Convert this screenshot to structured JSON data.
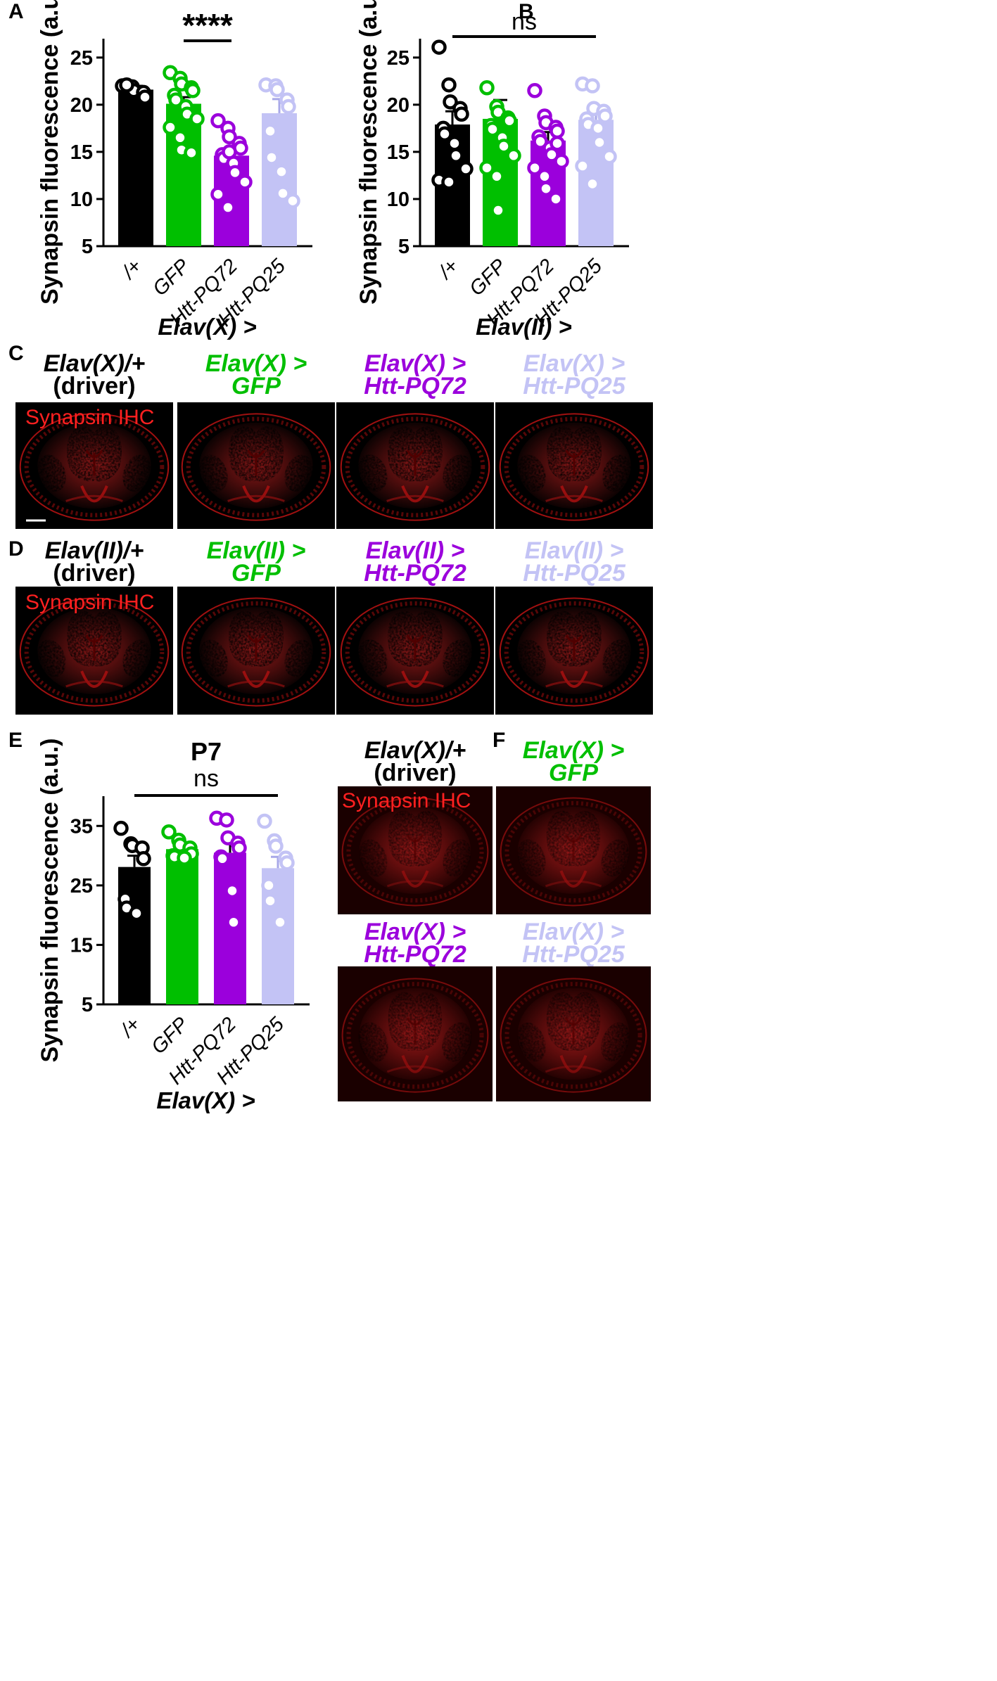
{
  "colors": {
    "driver": "#000000",
    "gfp": "#00bf00",
    "pq72": "#9b00dc",
    "pq25": "#c3c3f5",
    "stain": "#ff2020"
  },
  "panels": {
    "A": "A",
    "B": "B",
    "C": "C",
    "D": "D",
    "E": "E",
    "F": "F"
  },
  "chart_data": [
    {
      "panel": "A",
      "type": "bar",
      "ylabel": "Synapsin fluorescence (a.u.)",
      "xlabel": "Elav(X) >",
      "ylim": [
        5,
        27
      ],
      "yticks": [
        5,
        10,
        15,
        20,
        25
      ],
      "categories": [
        "/+",
        "GFP",
        "Htt-PQ72",
        "Htt-PQ25"
      ],
      "values": [
        21.6,
        20.1,
        14.6,
        19.1
      ],
      "errors": [
        0.4,
        0.7,
        0.8,
        1.5
      ],
      "points": [
        [
          22.0,
          21.9,
          21.5,
          21.3,
          20.8,
          22.1
        ],
        [
          23.4,
          22.8,
          22.2,
          21.8,
          21.5,
          21.0,
          20.5,
          19.8,
          19.0,
          18.5,
          17.6,
          16.5,
          15.2,
          14.9
        ],
        [
          18.3,
          17.5,
          16.6,
          15.9,
          15.4,
          14.7,
          14.3,
          13.8,
          12.8,
          11.8,
          10.5,
          9.1,
          15.0
        ],
        [
          22.1,
          22.0,
          21.6,
          20.5,
          19.8,
          17.2,
          14.4,
          12.9,
          10.6,
          9.8
        ]
      ],
      "significance": "****",
      "sig_span": [
        1,
        2
      ]
    },
    {
      "panel": "B",
      "type": "bar",
      "ylabel": "Synapsin fluorescence (a.u.)",
      "xlabel": "Elav(II) >",
      "ylim": [
        5,
        27
      ],
      "yticks": [
        5,
        10,
        15,
        20,
        25
      ],
      "categories": [
        "/+",
        "GFP",
        "Htt-PQ72",
        "Htt-PQ25"
      ],
      "values": [
        17.9,
        18.5,
        16.2,
        18.4
      ],
      "errors": [
        1.4,
        2.0,
        0.9,
        0.8
      ],
      "points": [
        [
          26.1,
          22.1,
          20.3,
          19.6,
          19.0,
          17.5,
          16.9,
          15.9,
          14.6,
          13.2,
          12.0,
          11.8
        ],
        [
          21.8,
          19.8,
          19.2,
          18.6,
          18.3,
          17.8,
          17.4,
          16.5,
          15.6,
          14.6,
          13.3,
          12.4,
          8.8
        ],
        [
          21.5,
          18.8,
          18.1,
          17.6,
          17.2,
          16.6,
          16.1,
          15.4,
          14.7,
          14.0,
          13.3,
          12.4,
          11.1,
          10.0,
          15.9
        ],
        [
          22.2,
          22.0,
          19.6,
          19.3,
          18.8,
          18.5,
          17.9,
          17.5,
          16.0,
          14.5,
          13.5,
          11.6
        ]
      ],
      "significance": "ns",
      "sig_span": [
        0,
        3
      ]
    },
    {
      "panel": "E",
      "type": "bar",
      "title": "P7",
      "ylabel": "Synapsin fluorescence (a.u.)",
      "xlabel": "Elav(X) >",
      "ylim": [
        5,
        40
      ],
      "yticks": [
        5,
        15,
        25,
        35
      ],
      "categories": [
        "/+",
        "GFP",
        "Htt-PQ72",
        "Htt-PQ25"
      ],
      "values": [
        28.1,
        31.1,
        30.5,
        27.9
      ],
      "errors": [
        1.9,
        0.9,
        1.9,
        1.9
      ],
      "points": [
        [
          34.6,
          32.0,
          31.7,
          31.3,
          29.5,
          22.7,
          21.2,
          20.3
        ],
        [
          34.0,
          32.6,
          31.8,
          31.3,
          30.3,
          30.0,
          29.8,
          29.6
        ],
        [
          36.3,
          36.0,
          33.0,
          32.1,
          31.3,
          29.8,
          29.5,
          24.1,
          18.8
        ],
        [
          35.8,
          32.5,
          31.6,
          29.6,
          28.8,
          25.0,
          22.4,
          18.8
        ]
      ],
      "significance": "ns",
      "sig_span": [
        0,
        3
      ]
    }
  ],
  "panel_C": {
    "stain_label": "Synapsin IHC",
    "headers": [
      {
        "l1": "Elav(X)/+",
        "l2": "(driver)",
        "color_key": "driver"
      },
      {
        "l1": "Elav(X) >",
        "l2": "GFP",
        "color_key": "gfp"
      },
      {
        "l1": "Elav(X) >",
        "l2": "Htt-PQ72",
        "color_key": "pq72"
      },
      {
        "l1": "Elav(X) >",
        "l2": "Htt-PQ25",
        "color_key": "pq25"
      }
    ]
  },
  "panel_D": {
    "stain_label": "Synapsin IHC",
    "headers": [
      {
        "l1": "Elav(II)/+",
        "l2": "(driver)",
        "color_key": "driver"
      },
      {
        "l1": "Elav(II) >",
        "l2": "GFP",
        "color_key": "gfp"
      },
      {
        "l1": "Elav(II) >",
        "l2": "Htt-PQ72",
        "color_key": "pq72"
      },
      {
        "l1": "Elav(II) >",
        "l2": "Htt-PQ25",
        "color_key": "pq25"
      }
    ]
  },
  "panel_F": {
    "stain_label": "Synapsin IHC",
    "headers": [
      {
        "l1": "Elav(X)/+",
        "l2": "(driver)",
        "color_key": "driver"
      },
      {
        "l1": "Elav(X) >",
        "l2": "GFP",
        "color_key": "gfp"
      },
      {
        "l1": "Elav(X) >",
        "l2": "Htt-PQ72",
        "color_key": "pq72"
      },
      {
        "l1": "Elav(X) >",
        "l2": "Htt-PQ25",
        "color_key": "pq25"
      }
    ]
  }
}
